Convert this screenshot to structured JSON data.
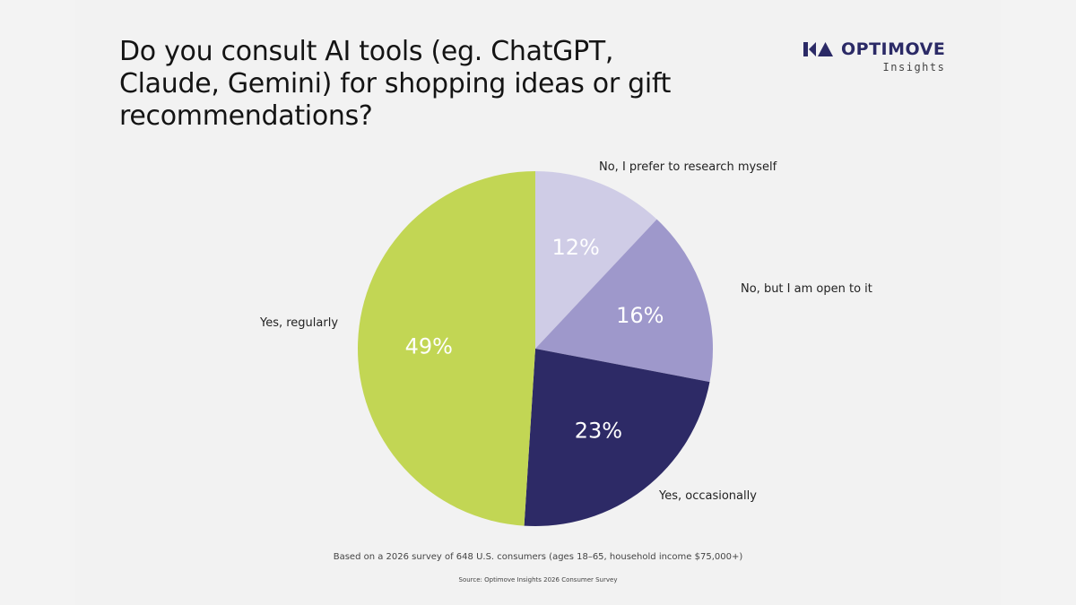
{
  "title": "Do you consult AI tools (eg. ChatGPT, Claude, Gemini) for shopping ideas or gift recommendations?",
  "brand": {
    "name": "OPTIMOVE",
    "sub": "Insights",
    "logo_icon": "optimove-logo-icon",
    "color": "#2b2a66"
  },
  "footnote": "Based on a 2026 survey of 648 U.S. consumers (ages 18–65, household income $75,000+)",
  "source": "Source: Optimove Insights 2026 Consumer Survey",
  "slices": [
    {
      "label": "No, I prefer to research myself",
      "value_label": "12%",
      "color": "#cfcce6"
    },
    {
      "label": "No, but I am open to it",
      "value_label": "16%",
      "color": "#9e98cb"
    },
    {
      "label": "Yes, occasionally",
      "value_label": "23%",
      "color": "#2d2a66"
    },
    {
      "label": "Yes, regularly",
      "value_label": "49%",
      "color": "#c2d654"
    }
  ],
  "chart_data": {
    "type": "pie",
    "title": "Do you consult AI tools (eg. ChatGPT, Claude, Gemini) for shopping ideas or gift recommendations?",
    "categories": [
      "No, I prefer to research myself",
      "No, but I am open to it",
      "Yes, occasionally",
      "Yes, regularly"
    ],
    "values": [
      12,
      16,
      23,
      49
    ],
    "unit": "%",
    "colors": [
      "#cfcce6",
      "#9e98cb",
      "#2d2a66",
      "#c2d654"
    ],
    "start_angle": "12 o'clock, clockwise",
    "legend": "none (direct labels)",
    "note": "Based on a 2026 survey of 648 U.S. consumers (ages 18–65, household income $75,000+)",
    "source": "Source: Optimove Insights 2026 Consumer Survey"
  }
}
